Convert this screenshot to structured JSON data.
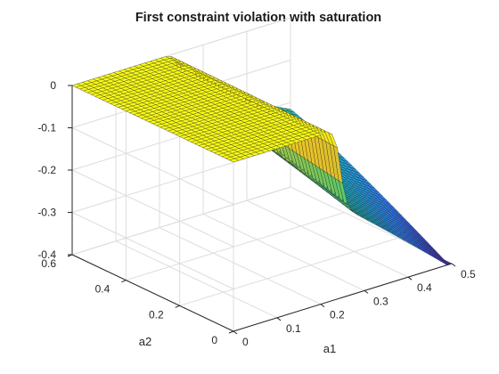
{
  "chart_data": {
    "type": "surface",
    "title": "First constraint violation with saturation",
    "xlabel": "a1",
    "ylabel": "a2",
    "zlabel": "",
    "xlim": [
      0,
      0.5
    ],
    "ylim": [
      0,
      0.6
    ],
    "zlim": [
      -0.4,
      0
    ],
    "xticks": [
      0,
      0.1,
      0.2,
      0.3,
      0.4,
      0.5
    ],
    "xtick_labels": [
      "0",
      "0.1",
      "0.2",
      "0.3",
      "0.4",
      "0.5"
    ],
    "yticks": [
      0,
      0.2,
      0.4,
      0.6
    ],
    "ytick_labels": [
      "0",
      "0.2",
      "0.4",
      "0.6"
    ],
    "zticks": [
      -0.4,
      -0.3,
      -0.2,
      -0.1,
      0
    ],
    "ztick_labels": [
      "-0.4",
      "-0.3",
      "-0.2",
      "-0.1",
      "0"
    ],
    "grid": true,
    "colormap": "parula",
    "colormap_stops": [
      "#3e26a8",
      "#2c7ef8",
      "#1bb6c6",
      "#5cc86a",
      "#e6c029",
      "#f9fb15"
    ],
    "surface_description_points": [
      {
        "a1": 0.0,
        "a2": 0.6,
        "z": 0.0
      },
      {
        "a1": 0.25,
        "a2": 0.6,
        "z": 0.0
      },
      {
        "a1": 0.25,
        "a2": 0.3,
        "z": -0.18
      },
      {
        "a1": 0.5,
        "a2": 0.6,
        "z": -0.22
      },
      {
        "a1": 0.25,
        "a2": 0.0,
        "z": -0.28
      },
      {
        "a1": 0.5,
        "a2": 0.0,
        "z": -0.4
      }
    ]
  }
}
